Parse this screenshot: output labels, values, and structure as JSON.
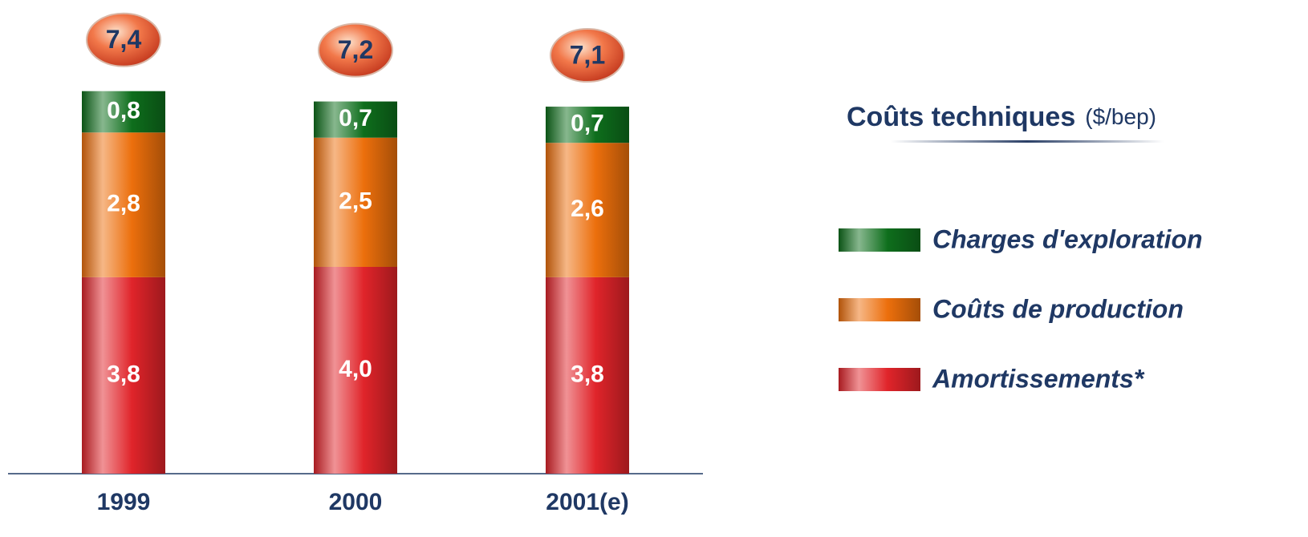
{
  "chart_data": {
    "type": "stacked_bar",
    "title": "Coûts techniques",
    "unit": "($/bep)",
    "categories": [
      "1999",
      "2000",
      "2001(e)"
    ],
    "series": [
      {
        "name": "Amortissements*",
        "color": "#e0242a",
        "values": [
          3.8,
          4.0,
          3.8
        ],
        "value_labels": [
          "3,8",
          "4,0",
          "3,8"
        ]
      },
      {
        "name": "Coûts de production",
        "color": "#ec6f0c",
        "values": [
          2.8,
          2.5,
          2.6
        ],
        "value_labels": [
          "2,8",
          "2,5",
          "2,6"
        ]
      },
      {
        "name": "Charges d'exploration",
        "color": "#0e6e1c",
        "values": [
          0.8,
          0.7,
          0.7
        ],
        "value_labels": [
          "0,8",
          "0,7",
          "0,7"
        ]
      }
    ],
    "totals": {
      "values": [
        7.4,
        7.2,
        7.1
      ],
      "value_labels": [
        "7,4",
        "7,2",
        "7,1"
      ]
    }
  }
}
